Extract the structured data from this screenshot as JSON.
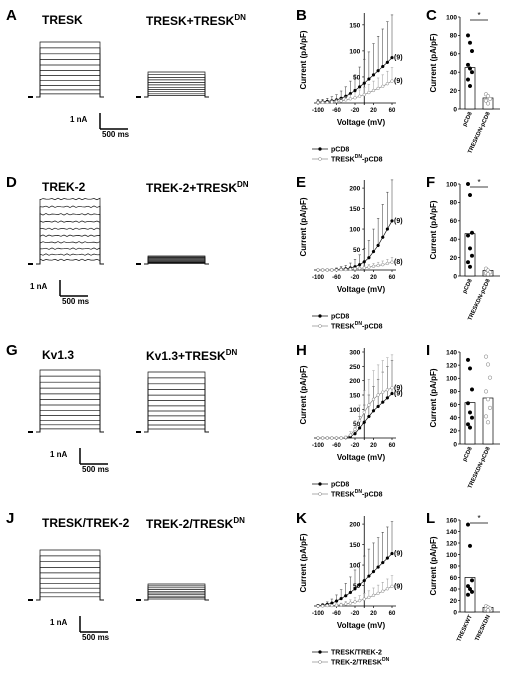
{
  "rows": [
    {
      "labels": [
        "A",
        "B",
        "C"
      ],
      "trace1_title": "TRESK",
      "trace2_title": "TRESK+TRESK",
      "trace2_sup": "DN",
      "scale_current": "1 nA",
      "scale_time": "500 ms",
      "iv": {
        "ylabel": "Current (pA/pF)",
        "xlabel": "Voltage (mV)",
        "yticks": [
          50,
          100,
          150
        ],
        "ymax": 165,
        "xticks": [
          "-100",
          "-60",
          "-20",
          "20",
          "60"
        ],
        "n_labels": [
          "(9)",
          "(9)"
        ],
        "legend": [
          {
            "text": "pCD8",
            "sup": ""
          },
          {
            "text": "TRESK",
            "sup": "DN",
            "suffix": "-pCD8"
          }
        ]
      },
      "bar": {
        "ylabel": "Current (pA/pF)",
        "yticks": [
          0,
          20,
          40,
          60,
          80,
          100
        ],
        "ymax": 100,
        "categories": [
          "pCD8",
          "TRESKDN-pCD8"
        ],
        "means": [
          45,
          12
        ],
        "points": [
          [
            80,
            72,
            63,
            48,
            44,
            40,
            32,
            25
          ],
          [
            16,
            14,
            11,
            9,
            6
          ]
        ],
        "sig": "*"
      }
    },
    {
      "labels": [
        "D",
        "E",
        "F"
      ],
      "trace1_title": "TREK-2",
      "trace2_title": "TREK-2+TRESK",
      "trace2_sup": "DN",
      "scale_current": "1 nA",
      "scale_time": "500 ms",
      "iv": {
        "ylabel": "Current (pA/pF)",
        "xlabel": "Voltage (mV)",
        "yticks": [
          0,
          50,
          100,
          150,
          200
        ],
        "ymax": 210,
        "xticks": [
          "-100",
          "-60",
          "-20",
          "20",
          "60"
        ],
        "n_labels": [
          "(9)",
          "(8)"
        ],
        "legend": [
          {
            "text": "pCD8",
            "sup": ""
          },
          {
            "text": "TRESK",
            "sup": "DN",
            "suffix": "-pCD8"
          }
        ]
      },
      "bar": {
        "ylabel": "Current (pA/pF)",
        "yticks": [
          0,
          20,
          40,
          60,
          80,
          100
        ],
        "ymax": 100,
        "categories": [
          "pCD8",
          "TRESKDN-pCD8"
        ],
        "means": [
          46,
          6
        ],
        "points": [
          [
            100,
            88,
            47,
            44,
            30,
            22,
            15,
            10
          ],
          [
            8,
            6,
            4,
            3,
            2
          ]
        ],
        "sig": "*"
      }
    },
    {
      "labels": [
        "G",
        "H",
        "I"
      ],
      "trace1_title": "Kv1.3",
      "trace2_title": "Kv1.3+TRESK",
      "trace2_sup": "DN",
      "scale_current": "1 nA",
      "scale_time": "500 ms",
      "iv": {
        "ylabel": "Current (pA/pF)",
        "xlabel": "Voltage (mV)",
        "yticks": [
          0,
          50,
          100,
          150,
          200,
          250,
          300
        ],
        "ymax": 300,
        "xticks": [
          "-100",
          "-60",
          "-20",
          "20",
          "60"
        ],
        "n_labels": [
          "(9)",
          "(9)"
        ],
        "legend": [
          {
            "text": "pCD8",
            "sup": ""
          },
          {
            "text": "TRESK",
            "sup": "DN",
            "suffix": "-pCD8"
          }
        ]
      },
      "bar": {
        "ylabel": "Current (pA/pF)",
        "yticks": [
          0,
          20,
          40,
          60,
          80,
          100,
          120,
          140
        ],
        "ymax": 140,
        "categories": [
          "pCD8",
          "TRESKDN-pCD8"
        ],
        "means": [
          63,
          70
        ],
        "points": [
          [
            128,
            115,
            83,
            62,
            48,
            40,
            30,
            25
          ],
          [
            133,
            121,
            101,
            80,
            68,
            55,
            42,
            33
          ]
        ],
        "sig": ""
      }
    },
    {
      "labels": [
        "J",
        "K",
        "L"
      ],
      "trace1_title": "TRESK/TREK-2",
      "trace2_title": "TREK-2/TRESK",
      "trace2_sup": "DN",
      "scale_current": "1 nA",
      "scale_time": "500 ms",
      "iv": {
        "ylabel": "Current (pA/pF)",
        "xlabel": "Voltage (mV)",
        "yticks": [
          0,
          50,
          100,
          150,
          200
        ],
        "ymax": 210,
        "xticks": [
          "-100",
          "-60",
          "-20",
          "20",
          "60"
        ],
        "n_labels": [
          "(9)",
          "(9)"
        ],
        "legend": [
          {
            "text": "TRESK/TREK-2",
            "sup": ""
          },
          {
            "text": "TREK-2/TRESK",
            "sup": "DN",
            "suffix": ""
          }
        ]
      },
      "bar": {
        "ylabel": "Current (pA/pF)",
        "yticks": [
          0,
          20,
          40,
          60,
          80,
          100,
          120,
          140,
          160
        ],
        "ymax": 160,
        "categories": [
          "TRESKWT",
          "TRESKDN"
        ],
        "means": [
          60,
          8
        ],
        "points": [
          [
            152,
            115,
            55,
            45,
            40,
            35,
            30
          ],
          [
            10,
            8,
            6,
            5,
            3
          ]
        ],
        "sig": "*"
      }
    }
  ],
  "chart_data": [
    {
      "type": "line",
      "title": "B",
      "xlabel": "Voltage (mV)",
      "ylabel": "Current (pA/pF)",
      "x": [
        -100,
        -90,
        -80,
        -70,
        -60,
        -50,
        -40,
        -30,
        -20,
        -10,
        0,
        10,
        20,
        30,
        40,
        50,
        60
      ],
      "series": [
        {
          "name": "pCD8",
          "values": [
            2,
            2,
            3,
            4,
            6,
            9,
            13,
            18,
            24,
            31,
            38,
            46,
            54,
            62,
            70,
            78,
            87
          ],
          "err": [
            5,
            5,
            6,
            8,
            10,
            14,
            18,
            24,
            30,
            38,
            46,
            52,
            60,
            66,
            72,
            78,
            82
          ]
        },
        {
          "name": "TRESKDN-pCD8",
          "values": [
            1,
            1,
            1,
            2,
            3,
            4,
            6,
            8,
            10,
            13,
            16,
            20,
            24,
            28,
            32,
            37,
            42
          ],
          "err": [
            2,
            2,
            2,
            3,
            4,
            5,
            6,
            8,
            10,
            12,
            14,
            16,
            18,
            20,
            22,
            24,
            26
          ]
        }
      ],
      "ylim": [
        0,
        165
      ]
    },
    {
      "type": "bar",
      "title": "C",
      "ylabel": "Current (pA/pF)",
      "categories": [
        "pCD8",
        "TRESKDN-pCD8"
      ],
      "values": [
        45,
        12
      ],
      "ylim": [
        0,
        100
      ]
    },
    {
      "type": "line",
      "title": "E",
      "xlabel": "Voltage (mV)",
      "ylabel": "Current (pA/pF)",
      "x": [
        -100,
        -90,
        -80,
        -70,
        -60,
        -50,
        -40,
        -30,
        -20,
        -10,
        0,
        10,
        20,
        30,
        40,
        50,
        60
      ],
      "series": [
        {
          "name": "pCD8",
          "values": [
            0,
            0,
            0,
            0,
            1,
            2,
            3,
            5,
            8,
            13,
            20,
            30,
            45,
            60,
            80,
            100,
            120
          ],
          "err": [
            2,
            2,
            2,
            3,
            4,
            6,
            8,
            12,
            18,
            24,
            32,
            42,
            55,
            66,
            80,
            90,
            100
          ]
        },
        {
          "name": "TRESKDN-pCD8",
          "values": [
            0,
            0,
            0,
            0,
            0,
            1,
            1,
            2,
            3,
            4,
            5,
            7,
            9,
            11,
            13,
            16,
            19
          ],
          "err": [
            1,
            1,
            1,
            1,
            2,
            2,
            2,
            3,
            3,
            4,
            5,
            6,
            7,
            8,
            9,
            10,
            12
          ]
        }
      ],
      "ylim": [
        0,
        210
      ]
    },
    {
      "type": "bar",
      "title": "F",
      "ylabel": "Current (pA/pF)",
      "categories": [
        "pCD8",
        "TRESKDN-pCD8"
      ],
      "values": [
        46,
        6
      ],
      "ylim": [
        0,
        100
      ]
    },
    {
      "type": "line",
      "title": "H",
      "xlabel": "Voltage (mV)",
      "ylabel": "Current (pA/pF)",
      "x": [
        -100,
        -90,
        -80,
        -70,
        -60,
        -50,
        -40,
        -30,
        -20,
        -10,
        0,
        10,
        20,
        30,
        40,
        50,
        60
      ],
      "series": [
        {
          "name": "pCD8",
          "values": [
            0,
            0,
            0,
            0,
            0,
            0,
            1,
            5,
            15,
            35,
            55,
            75,
            95,
            110,
            125,
            140,
            155
          ],
          "err": [
            2,
            2,
            2,
            2,
            2,
            3,
            4,
            8,
            20,
            40,
            60,
            75,
            85,
            95,
            105,
            110,
            115
          ]
        },
        {
          "name": "TRESKDN-pCD8",
          "values": [
            0,
            0,
            0,
            0,
            0,
            0,
            2,
            10,
            30,
            60,
            90,
            115,
            135,
            150,
            160,
            168,
            175
          ],
          "err": [
            2,
            2,
            2,
            2,
            2,
            3,
            5,
            12,
            30,
            55,
            75,
            90,
            100,
            105,
            110,
            112,
            115
          ]
        }
      ],
      "ylim": [
        0,
        300
      ]
    },
    {
      "type": "bar",
      "title": "I",
      "ylabel": "Current (pA/pF)",
      "categories": [
        "pCD8",
        "TRESKDN-pCD8"
      ],
      "values": [
        63,
        70
      ],
      "ylim": [
        0,
        140
      ]
    },
    {
      "type": "line",
      "title": "K",
      "xlabel": "Voltage (mV)",
      "ylabel": "Current (pA/pF)",
      "x": [
        -100,
        -90,
        -80,
        -70,
        -60,
        -50,
        -40,
        -30,
        -20,
        -10,
        0,
        10,
        20,
        30,
        40,
        50,
        60
      ],
      "series": [
        {
          "name": "TRESK/TREK-2",
          "values": [
            1,
            2,
            4,
            7,
            12,
            18,
            25,
            33,
            42,
            52,
            62,
            73,
            84,
            95,
            106,
            117,
            128
          ],
          "err": [
            3,
            4,
            6,
            10,
            15,
            22,
            30,
            38,
            46,
            54,
            60,
            66,
            70,
            72,
            74,
            76,
            78
          ]
        },
        {
          "name": "TREK-2/TRESKDN",
          "values": [
            0,
            0,
            1,
            1,
            2,
            3,
            5,
            7,
            10,
            13,
            17,
            21,
            26,
            31,
            36,
            42,
            48
          ],
          "err": [
            1,
            1,
            2,
            2,
            3,
            4,
            6,
            8,
            10,
            12,
            14,
            16,
            18,
            20,
            22,
            24,
            26
          ]
        }
      ],
      "ylim": [
        0,
        210
      ]
    },
    {
      "type": "bar",
      "title": "L",
      "ylabel": "Current (pA/pF)",
      "categories": [
        "TRESKWT",
        "TRESKDN"
      ],
      "values": [
        60,
        8
      ],
      "ylim": [
        0,
        160
      ]
    }
  ]
}
